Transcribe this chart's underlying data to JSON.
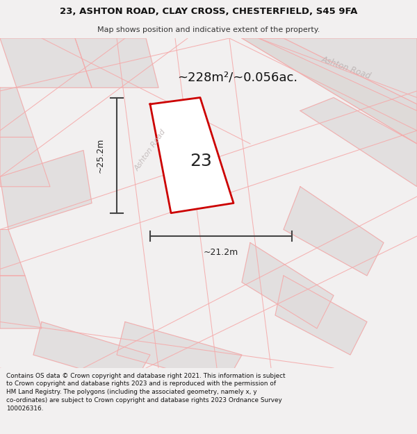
{
  "title_line1": "23, ASHTON ROAD, CLAY CROSS, CHESTERFIELD, S45 9FA",
  "title_line2": "Map shows position and indicative extent of the property.",
  "area_text": "~228m²/~0.056ac.",
  "plot_number": "23",
  "dim_width": "~21.2m",
  "dim_height": "~25.2m",
  "road_label_ur": "Ashton Road",
  "road_label_mid": "Ashton Road",
  "footer_text": "Contains OS data © Crown copyright and database right 2021. This information is subject to Crown copyright and database rights 2023 and is reproduced with the permission of HM Land Registry. The polygons (including the associated geometry, namely x, y co-ordinates) are subject to Crown copyright and database rights 2023 Ordnance Survey 100026316.",
  "bg_color": "#f2f0f0",
  "map_bg": "#ebebeb",
  "plot_fill": "#ffffff",
  "plot_edge": "#cc0000",
  "road_line_color": "#f5aaaa",
  "block_fill": "#e0dcdc",
  "block_edge": "#f5aaaa",
  "text_color": "#222222",
  "road_text_color": "#c0b8b8",
  "footer_bg": "#ffffff",
  "title_bg": "#ffffff",
  "dim_arrow_color": "#444444"
}
